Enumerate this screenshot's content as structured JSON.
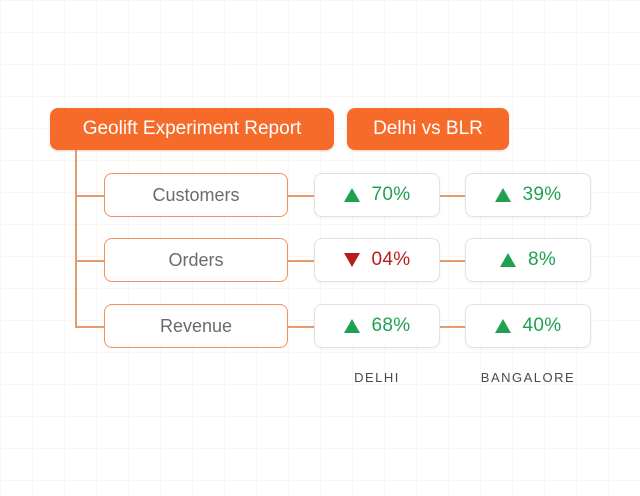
{
  "header": {
    "title": "Geolift Experiment Report",
    "comparison": "Delhi vs BLR"
  },
  "rows": [
    {
      "metric": "Customers",
      "delhi": {
        "value": "70%",
        "direction": "up"
      },
      "bangalore": {
        "value": "39%",
        "direction": "up"
      }
    },
    {
      "metric": "Orders",
      "delhi": {
        "value": "04%",
        "direction": "down"
      },
      "bangalore": {
        "value": "8%",
        "direction": "up"
      }
    },
    {
      "metric": "Revenue",
      "delhi": {
        "value": "68%",
        "direction": "up"
      },
      "bangalore": {
        "value": "40%",
        "direction": "up"
      }
    }
  ],
  "columns": {
    "delhi": "DELHI",
    "bangalore": "BANGALORE"
  },
  "colors": {
    "accent": "#f76b2a",
    "positive": "#1fa150",
    "negative": "#b81d1d",
    "connector": "#e79a6c"
  },
  "icons": {
    "up": "triangle-up-icon",
    "down": "triangle-down-icon"
  }
}
